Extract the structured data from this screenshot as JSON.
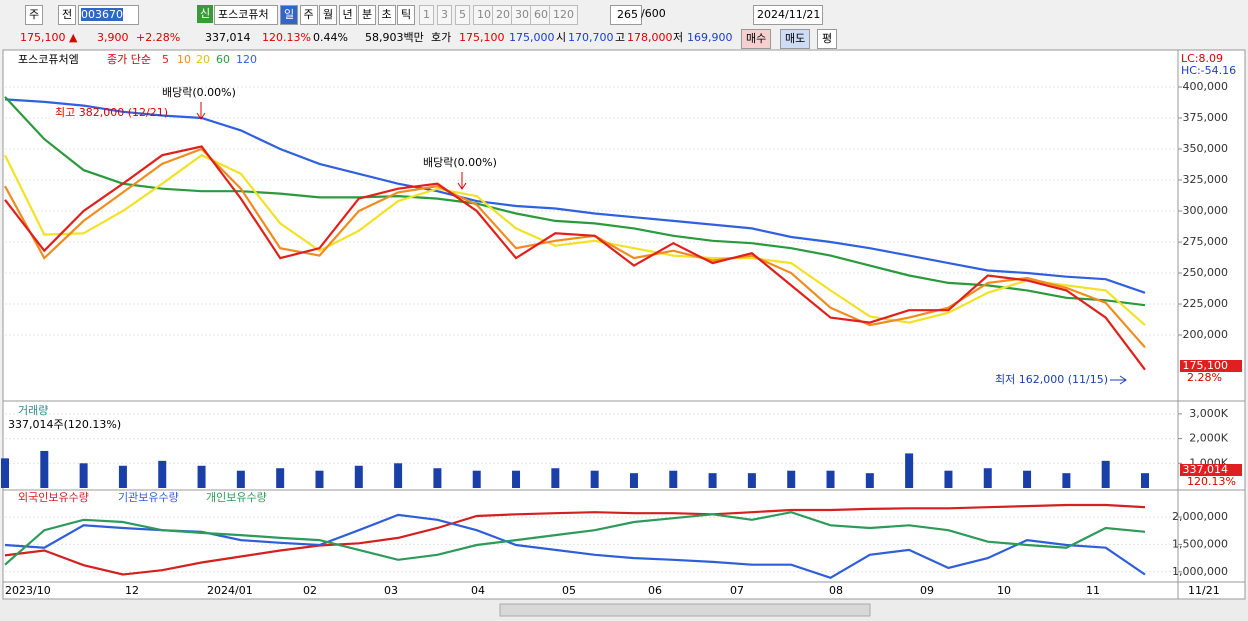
{
  "toolbar": {
    "period": "주",
    "prev": "전",
    "code": "003670",
    "new_badge": "신",
    "name": "포스코퓨처",
    "intervals": [
      "일",
      "주",
      "월",
      "년",
      "분",
      "초",
      "틱"
    ],
    "minutes": [
      "1",
      "3",
      "5",
      "10",
      "20",
      "30",
      "60",
      "120"
    ],
    "count": "265",
    "max": "/600",
    "date": "2024/11/21"
  },
  "info": [
    "175,100 ▲",
    "3,900",
    "+2.28%",
    "337,014",
    "120.13%",
    "0.44%",
    "58,903백만",
    "호가",
    "175,100",
    "175,000",
    "시",
    "170,700",
    "고",
    "178,000",
    "저",
    "169,900"
  ],
  "buttons": [
    "매수",
    "매도",
    "평"
  ],
  "chart": {
    "price": {
      "legend_name": "포스코퓨처엠",
      "legend_type": "종가 단순",
      "ylim": [
        149200,
        425800
      ],
      "yticks": [
        {
          "value": 200000,
          "label": "200,000"
        },
        {
          "value": 225000,
          "label": "225,000"
        },
        {
          "value": 250000,
          "label": "250,000"
        },
        {
          "value": 275000,
          "label": "275,000"
        },
        {
          "value": 300000,
          "label": "300,000"
        },
        {
          "value": 325000,
          "label": "325,000"
        },
        {
          "value": 350000,
          "label": "350,000"
        },
        {
          "value": 375000,
          "label": "375,000"
        },
        {
          "value": 400000,
          "label": "400,000"
        }
      ],
      "series": [
        {
          "name": "5",
          "color": "#e0201b",
          "values": [
            309000,
            268000,
            300000,
            322000,
            345000,
            352000,
            310000,
            262000,
            270000,
            310000,
            318000,
            322000,
            300000,
            262000,
            282000,
            280000,
            256000,
            274000,
            258000,
            266000,
            240000,
            214000,
            210000,
            220000,
            220000,
            248000,
            244000,
            236000,
            214000,
            172000
          ]
        },
        {
          "name": "10",
          "color": "#f08c1e",
          "values": [
            320000,
            262000,
            292000,
            315000,
            338000,
            350000,
            318000,
            270000,
            264000,
            300000,
            315000,
            320000,
            305000,
            270000,
            276000,
            280000,
            262000,
            268000,
            260000,
            264000,
            250000,
            222000,
            208000,
            214000,
            222000,
            242000,
            246000,
            238000,
            226000,
            190000
          ]
        },
        {
          "name": "20",
          "color": "#f2e226",
          "values": [
            345000,
            281000,
            282000,
            300000,
            322000,
            345000,
            330000,
            290000,
            268000,
            284000,
            308000,
            318000,
            312000,
            286000,
            272000,
            276000,
            270000,
            264000,
            262000,
            262000,
            258000,
            236000,
            215000,
            210000,
            218000,
            234000,
            244000,
            240000,
            236000,
            208000
          ]
        },
        {
          "name": "60",
          "color": "#2a9a3c",
          "values": [
            392000,
            358000,
            333000,
            322000,
            318000,
            316000,
            316000,
            314000,
            311000,
            311000,
            312000,
            310000,
            306000,
            298000,
            292000,
            290000,
            286000,
            280000,
            276000,
            274000,
            270000,
            264000,
            256000,
            248000,
            242000,
            240000,
            236000,
            230000,
            228000,
            224000
          ]
        },
        {
          "name": "120",
          "color": "#3060e0",
          "values": [
            390000,
            388000,
            385000,
            380000,
            377000,
            375000,
            365000,
            350000,
            338000,
            330000,
            322000,
            316000,
            308000,
            304000,
            302000,
            298000,
            295000,
            292000,
            289000,
            286000,
            279000,
            275000,
            270000,
            264000,
            258000,
            252000,
            250000,
            247000,
            245000,
            234000
          ]
        }
      ],
      "annotations": [
        "배당락(0.00%)",
        "배당락(0.00%)",
        "최고 382,000 (12/21)",
        "최저 162,000 (11/15)"
      ],
      "right_labels": [
        "LC:8.09",
        "HC:-54.16"
      ],
      "last_price": "175,100",
      "last_change": "2.28%"
    },
    "volume": {
      "title": "거래량",
      "subtitle": "337,014주(120.13%)",
      "ylim": [
        0,
        3400000
      ],
      "yticks": [
        {
          "value": 1000000,
          "label": "1,000K"
        },
        {
          "value": 2000000,
          "label": "2,000K"
        },
        {
          "value": 3000000,
          "label": "3,000K"
        }
      ],
      "color": "#1a3fa8",
      "values": [
        1200000,
        1500000,
        1000000,
        900000,
        1100000,
        900000,
        700000,
        800000,
        700000,
        900000,
        1000000,
        800000,
        700000,
        700000,
        800000,
        700000,
        600000,
        700000,
        600000,
        600000,
        700000,
        700000,
        600000,
        1400000,
        700000,
        800000,
        700000,
        600000,
        1100000,
        600000
      ],
      "last_volume": "337,014",
      "last_ratio": "120.13%"
    },
    "holdings": {
      "ylim": [
        850000,
        2440000
      ],
      "yticks": [
        {
          "value": 1000000,
          "label": "1,000,000"
        },
        {
          "value": 1500000,
          "label": "1,500,000"
        },
        {
          "value": 2000000,
          "label": "2,000,000"
        }
      ],
      "series": [
        {
          "name": "외국인보유수량",
          "color": "#d42020",
          "values": [
            1300000,
            1390000,
            1120000,
            950000,
            1030000,
            1170000,
            1280000,
            1390000,
            1480000,
            1520000,
            1620000,
            1800000,
            2020000,
            2050000,
            2070000,
            2090000,
            2070000,
            2070000,
            2050000,
            2090000,
            2130000,
            2130000,
            2150000,
            2160000,
            2160000,
            2180000,
            2200000,
            2220000,
            2220000,
            2180000
          ]
        },
        {
          "name": "기관보유수량",
          "color": "#2f5fd8",
          "values": [
            1490000,
            1440000,
            1850000,
            1800000,
            1760000,
            1730000,
            1580000,
            1530000,
            1490000,
            1760000,
            2040000,
            1950000,
            1760000,
            1490000,
            1400000,
            1310000,
            1250000,
            1220000,
            1180000,
            1130000,
            1130000,
            890000,
            1310000,
            1400000,
            1070000,
            1250000,
            1580000,
            1490000,
            1440000,
            950000
          ]
        },
        {
          "name": "개인보유수량",
          "color": "#2e9a5a",
          "values": [
            1130000,
            1760000,
            1950000,
            1910000,
            1760000,
            1710000,
            1670000,
            1620000,
            1580000,
            1400000,
            1220000,
            1310000,
            1490000,
            1580000,
            1670000,
            1760000,
            1910000,
            1980000,
            2050000,
            1950000,
            2090000,
            1850000,
            1800000,
            1850000,
            1760000,
            1550000,
            1490000,
            1440000,
            1800000,
            1730000
          ]
        }
      ]
    },
    "dates": [
      "2023/10",
      "12",
      "2024/01",
      "02",
      "03",
      "04",
      "05",
      "06",
      "07",
      "08",
      "09",
      "10",
      "11"
    ],
    "cursor_date": "11/21"
  }
}
